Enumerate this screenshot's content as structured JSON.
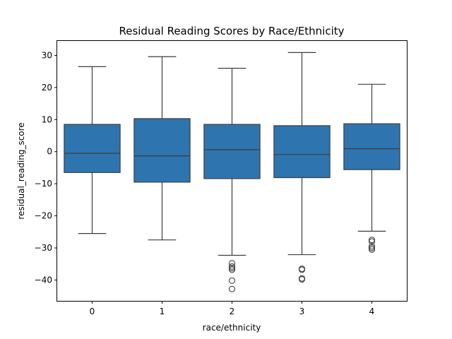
{
  "chart_data": {
    "type": "box",
    "title": "Residual Reading Scores by Race/Ethnicity",
    "xlabel": "race/ethnicity",
    "ylabel": "residual_reading_score",
    "ylim": [
      -46.5,
      34.5
    ],
    "yticks": [
      30,
      20,
      10,
      0,
      -10,
      -20,
      -30,
      -40
    ],
    "ytick_labels": [
      "30",
      "20",
      "10",
      "0",
      "−10",
      "−20",
      "−30",
      "−40"
    ],
    "grid": false,
    "box_color": "#2e75b0",
    "line_color": "#3d3d3d",
    "groups": [
      {
        "label": "0",
        "whisker_low": -25.5,
        "q1": -6.5,
        "median": -0.5,
        "q3": 8.5,
        "whisker_high": 26.5,
        "outliers": []
      },
      {
        "label": "1",
        "whisker_low": -27.5,
        "q1": -9.5,
        "median": -1.3,
        "q3": 10.3,
        "whisker_high": 29.6,
        "outliers": []
      },
      {
        "label": "2",
        "whisker_low": -32.3,
        "q1": -8.4,
        "median": 0.6,
        "q3": 8.5,
        "whisker_high": 26.0,
        "outliers": [
          -34.8,
          -35.8,
          -36.3,
          -36.8,
          -40.2,
          -42.8
        ]
      },
      {
        "label": "3",
        "whisker_low": -32.1,
        "q1": -8.1,
        "median": -0.9,
        "q3": 8.1,
        "whisker_high": 30.9,
        "outliers": [
          -36.5,
          -36.8,
          -39.5,
          -39.8
        ]
      },
      {
        "label": "4",
        "whisker_low": -24.8,
        "q1": -5.6,
        "median": 0.9,
        "q3": 8.7,
        "whisker_high": 21.0,
        "outliers": [
          -27.5,
          -28.0,
          -29.5,
          -30.0,
          -30.5
        ]
      }
    ]
  }
}
